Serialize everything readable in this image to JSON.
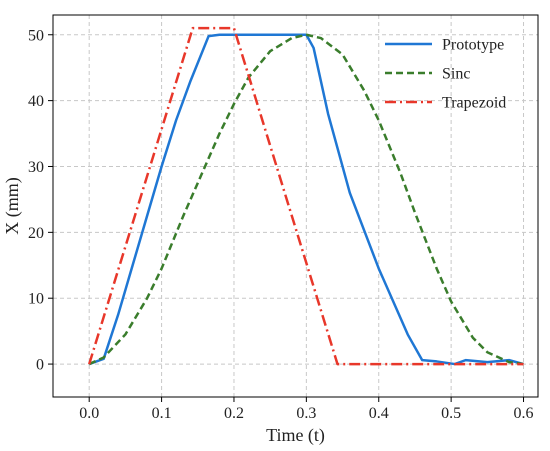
{
  "chart_data": {
    "type": "line",
    "xlabel": "Time (t)",
    "ylabel": "X (mm)",
    "xlim": [
      -0.05,
      0.62
    ],
    "ylim": [
      -5,
      53
    ],
    "xticks": [
      "0.0",
      "0.1",
      "0.2",
      "0.3",
      "0.4",
      "0.5",
      "0.6"
    ],
    "yticks": [
      "0",
      "10",
      "20",
      "30",
      "40",
      "50"
    ],
    "grid": true,
    "legend_position": "top-right",
    "series": [
      {
        "name": "Prototype",
        "style": "solid",
        "color": "#1f77d4",
        "x": [
          0.0,
          0.02,
          0.04,
          0.06,
          0.08,
          0.1,
          0.12,
          0.14,
          0.165,
          0.18,
          0.22,
          0.26,
          0.3,
          0.31,
          0.33,
          0.36,
          0.4,
          0.44,
          0.46,
          0.48,
          0.505,
          0.52,
          0.55,
          0.58,
          0.6
        ],
        "y": [
          0.0,
          0.8,
          7.5,
          15.0,
          22.5,
          30.0,
          37.0,
          43.0,
          49.8,
          50.0,
          50.0,
          50.0,
          50.0,
          48.0,
          38.0,
          26.0,
          14.5,
          4.5,
          0.6,
          0.4,
          0.0,
          0.6,
          0.3,
          0.6,
          0.0
        ]
      },
      {
        "name": "Sinc",
        "style": "dashed",
        "color": "#3a7d2c",
        "x": [
          0.0,
          0.02,
          0.05,
          0.08,
          0.1,
          0.13,
          0.15,
          0.18,
          0.2,
          0.22,
          0.25,
          0.28,
          0.3,
          0.32,
          0.35,
          0.38,
          0.4,
          0.43,
          0.45,
          0.48,
          0.5,
          0.53,
          0.55,
          0.58,
          0.6
        ],
        "y": [
          0.0,
          1.0,
          4.5,
          10.0,
          14.5,
          22.5,
          27.5,
          35.0,
          39.5,
          43.5,
          47.5,
          49.5,
          50.0,
          49.5,
          47.0,
          41.5,
          37.0,
          29.0,
          23.0,
          14.5,
          9.5,
          4.0,
          1.8,
          0.3,
          0.0
        ]
      },
      {
        "name": "Trapezoid",
        "style": "dashdot",
        "color": "#e8372a",
        "x": [
          0.0,
          0.143,
          0.2,
          0.343,
          0.6
        ],
        "y": [
          0.0,
          51.0,
          51.0,
          0.0,
          0.0
        ]
      }
    ]
  }
}
